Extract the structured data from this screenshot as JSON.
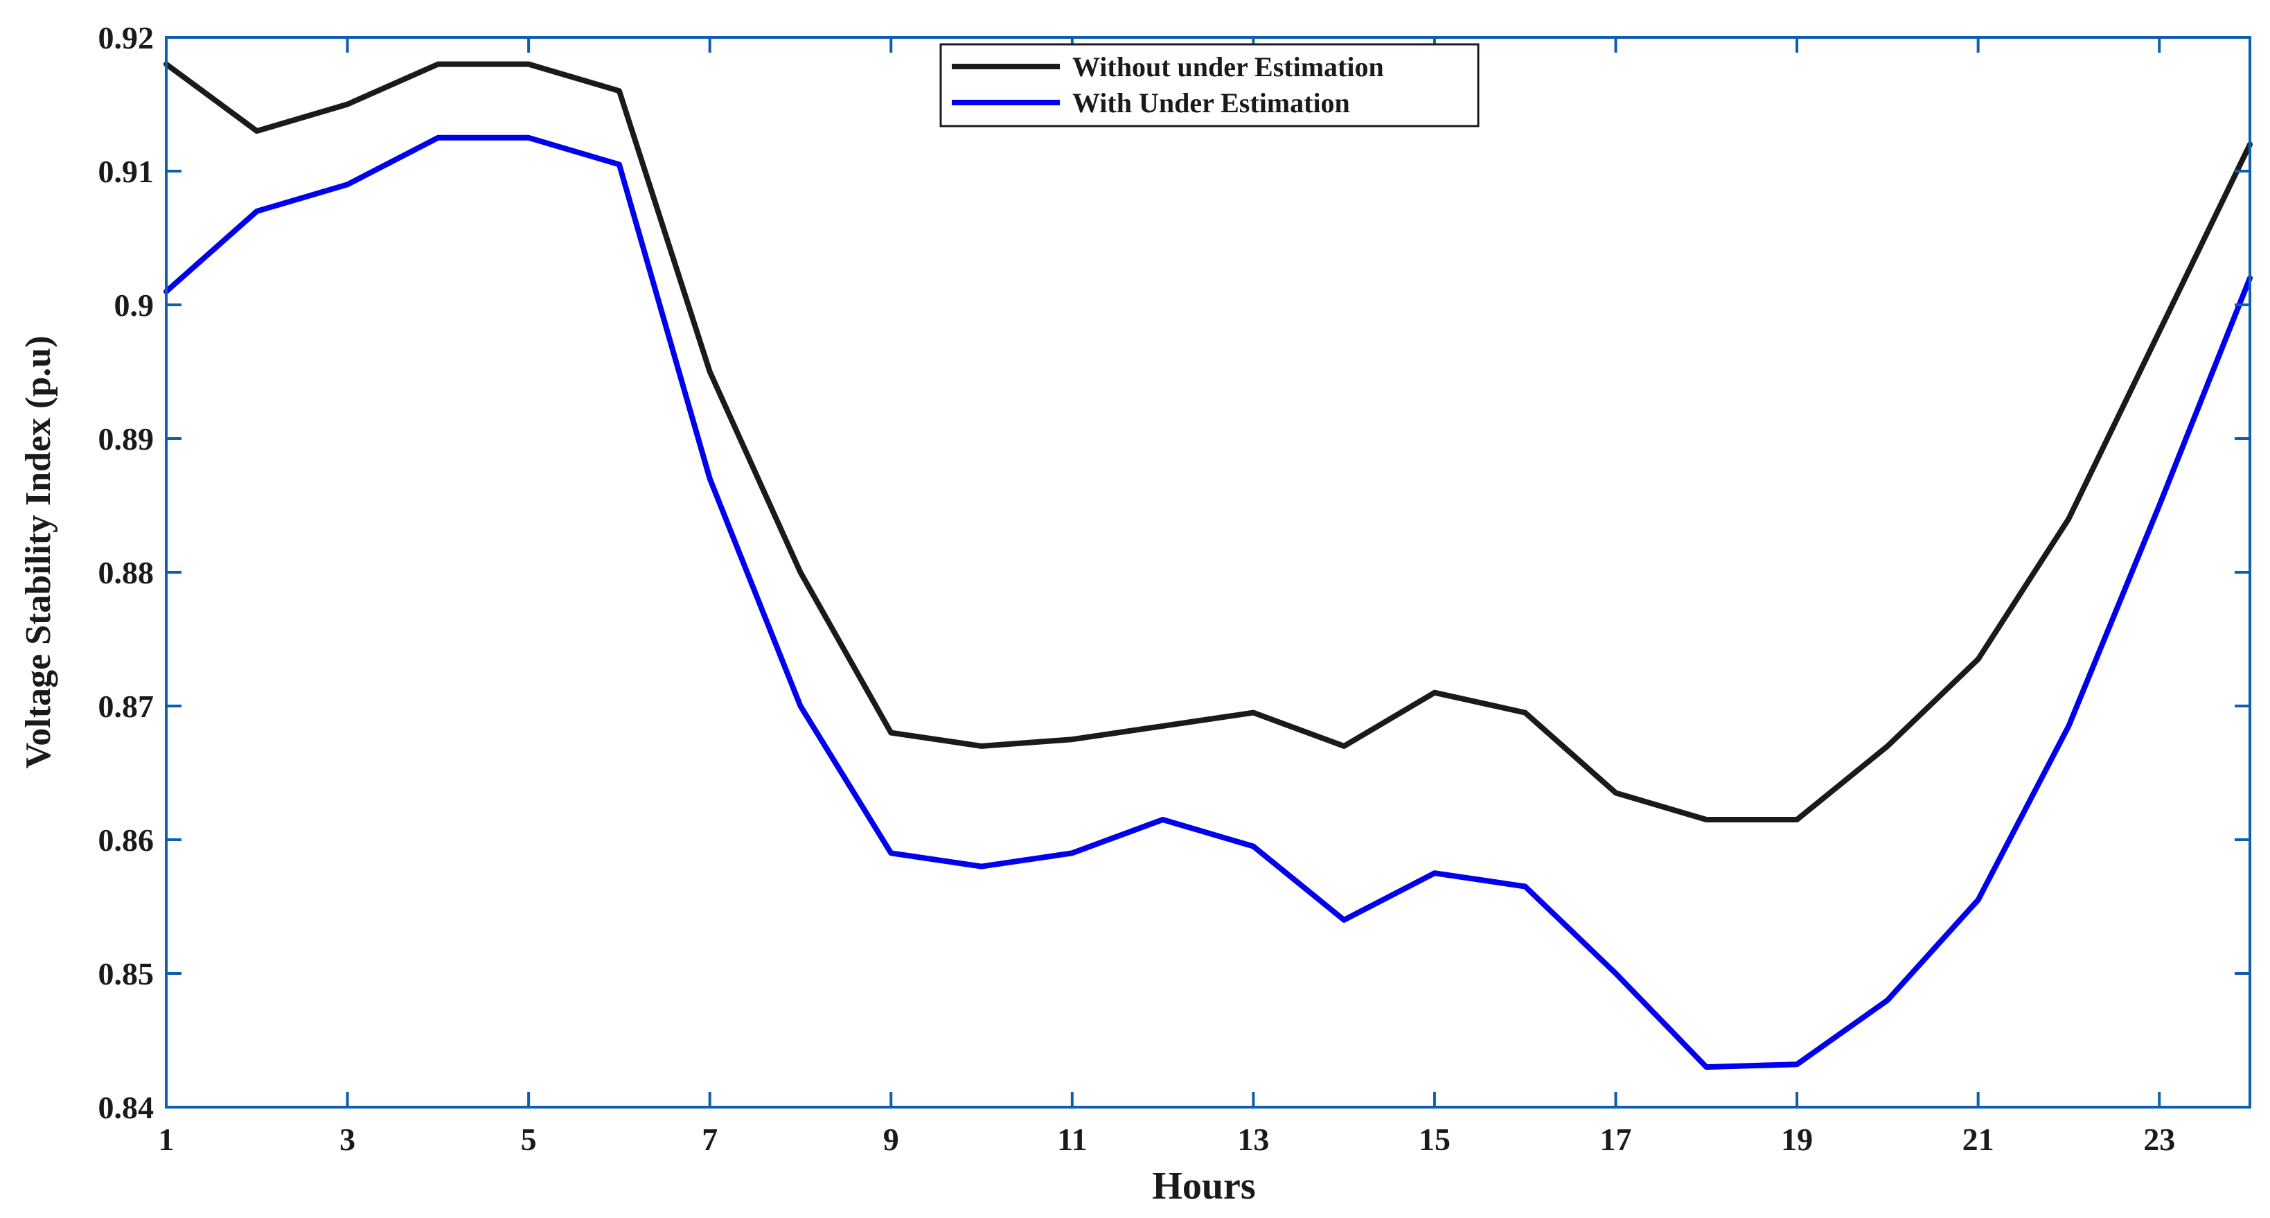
{
  "chart_data": {
    "type": "line",
    "title": "",
    "xlabel": "Hours",
    "ylabel": "Voltage Stability Index (p.u)",
    "xlim": [
      1,
      24
    ],
    "ylim": [
      0.84,
      0.92
    ],
    "x_ticks": [
      1,
      3,
      5,
      7,
      9,
      11,
      13,
      15,
      17,
      19,
      21,
      23
    ],
    "y_ticks": [
      0.84,
      0.85,
      0.86,
      0.87,
      0.88,
      0.89,
      0.9,
      0.91,
      0.92
    ],
    "x_tick_labels": [
      "1",
      "3",
      "5",
      "7",
      "9",
      "11",
      "13",
      "15",
      "17",
      "19",
      "21",
      "23"
    ],
    "y_tick_labels": [
      "0.84",
      "0.85",
      "0.86",
      "0.87",
      "0.88",
      "0.89",
      "0.9",
      "0.91",
      "0.92"
    ],
    "grid": false,
    "legend_position": "top-center",
    "axes_color": "#0f5fb0",
    "x": [
      1,
      2,
      3,
      4,
      5,
      6,
      7,
      8,
      9,
      10,
      11,
      12,
      13,
      14,
      15,
      16,
      17,
      18,
      19,
      20,
      21,
      22,
      23,
      24
    ],
    "series": [
      {
        "name": "Without under Estimation",
        "color": "#1a1a1a",
        "values": [
          0.918,
          0.913,
          0.915,
          0.918,
          0.918,
          0.916,
          0.895,
          0.88,
          0.868,
          0.867,
          0.8675,
          0.8685,
          0.8695,
          0.867,
          0.871,
          0.8695,
          0.8635,
          0.8615,
          0.8615,
          0.867,
          0.8735,
          0.884,
          0.898,
          0.912
        ]
      },
      {
        "name": "With Under Estimation",
        "color": "#0000ee",
        "values": [
          0.901,
          0.907,
          0.909,
          0.9125,
          0.9125,
          0.9105,
          0.887,
          0.87,
          0.859,
          0.858,
          0.859,
          0.8615,
          0.8595,
          0.854,
          0.8575,
          0.8565,
          0.85,
          0.843,
          0.8432,
          0.848,
          0.8555,
          0.8685,
          0.885,
          0.902
        ]
      }
    ]
  }
}
